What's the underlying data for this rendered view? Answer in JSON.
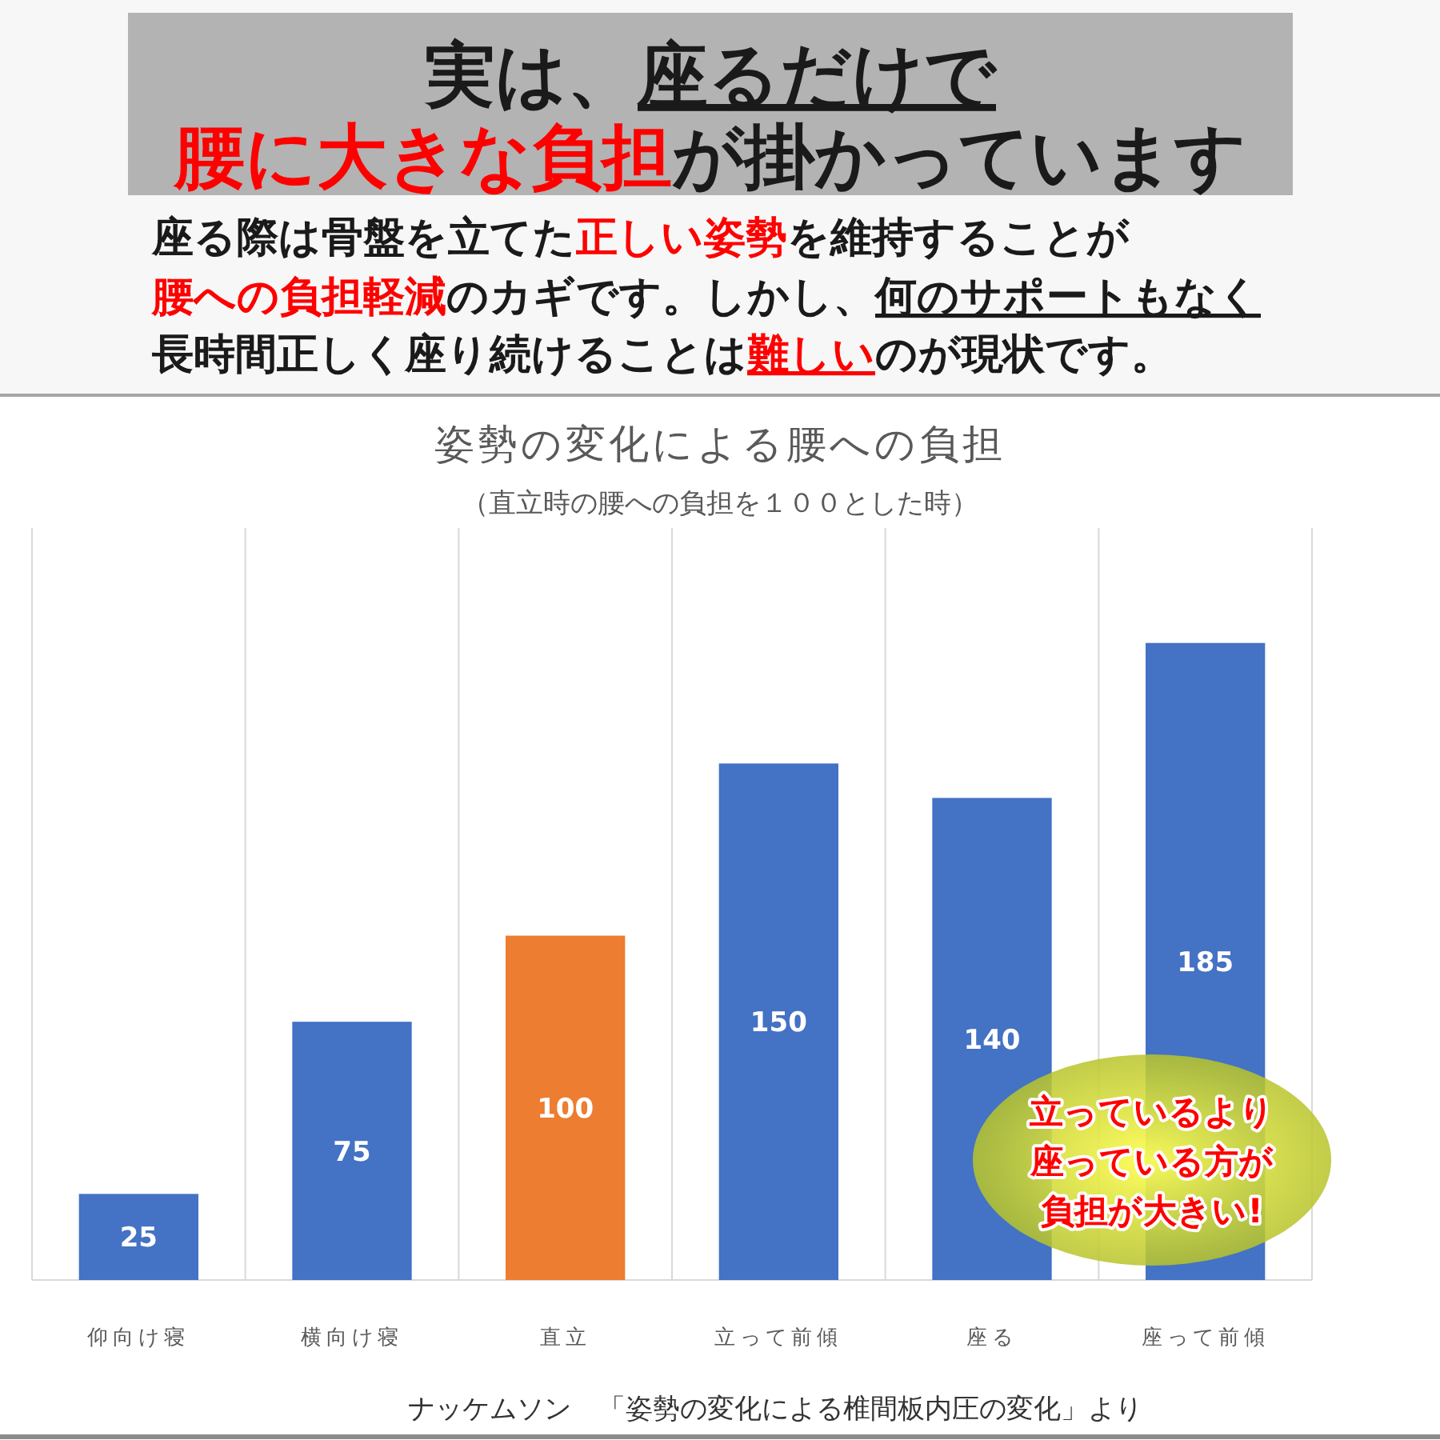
{
  "chart_data": {
    "type": "bar",
    "title": "姿勢の変化による腰への負担",
    "subtitle": "（直立時の腰への負担を１００とした時）",
    "categories": [
      "仰向け寝",
      "横向け寝",
      "直立",
      "立って前傾",
      "座る",
      "座って前傾"
    ],
    "values": [
      25,
      75,
      100,
      150,
      140,
      185
    ],
    "colors": [
      "#4472c4",
      "#4472c4",
      "#ed7d31",
      "#4472c4",
      "#4472c4",
      "#4472c4"
    ],
    "data_labels": true,
    "grid": "x",
    "annotations": [
      "実は、",
      "座るだけで",
      "腰に大きな負担",
      "が掛かっています",
      "座る際は骨盤を立てた",
      "正しい姿勢",
      "を維持することが",
      "腰への負担軽減",
      "のカギです。しかし、",
      "何のサポートもなく",
      "長時間正しく座り続けることは",
      "難しい",
      "のが現状です。",
      "立っているより",
      "座っている方が",
      "負担が大きい!",
      "ナッケムソン　「姿勢の変化による椎間板内圧の変化」より"
    ]
  }
}
